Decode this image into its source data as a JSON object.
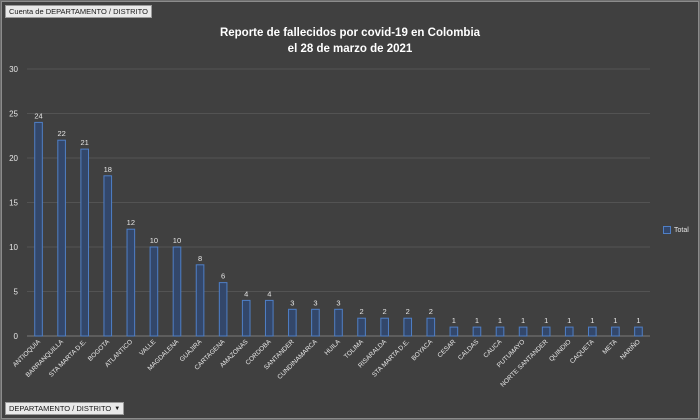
{
  "report_filter_label": "Cuenta de DEPARTAMENTO   / DISTRITO",
  "axis_field_label": "DEPARTAMENTO   / DISTRITO",
  "legend_label": "Total",
  "colors": {
    "bar_fill": "#33476a",
    "bar_stroke": "#4f7fc6",
    "background": "#404040",
    "grid": "#5a5a5a",
    "text": "#e6e6e6"
  },
  "chart_data": {
    "type": "bar",
    "title": "Reporte de fallecidos por covid-19 en Colombia",
    "subtitle": "el 28 de marzo de 2021",
    "xlabel": "",
    "ylabel": "",
    "ylim": [
      0,
      30
    ],
    "yticks": [
      0,
      5,
      10,
      15,
      20,
      25,
      30
    ],
    "grid": true,
    "legend": "right",
    "categories": [
      "ANTIOQUIA",
      "BARRANQUILLA",
      "STA MARTA D.E.",
      "BOGOTA",
      "ATLANTICO",
      "VALLE",
      "MAGDALENA",
      "GUAJIRA",
      "CARTAGENA",
      "AMAZONAS",
      "CORDOBA",
      "SANTANDER",
      "CUNDINAMARCA",
      "HUILA",
      "TOLIMA",
      "RISARALDA",
      "STA MARTA D.E.",
      "BOYACA",
      "CESAR",
      "CALDAS",
      "CAUCA",
      "PUTUMAYO",
      "NORTE SANTANDER",
      "QUINDIO",
      "CAQUETA",
      "META",
      "NARIÑO"
    ],
    "series": [
      {
        "name": "Total",
        "values": [
          24,
          22,
          21,
          18,
          12,
          10,
          10,
          8,
          6,
          4,
          4,
          3,
          3,
          3,
          2,
          2,
          2,
          2,
          1,
          1,
          1,
          1,
          1,
          1,
          1,
          1,
          1
        ]
      }
    ]
  }
}
